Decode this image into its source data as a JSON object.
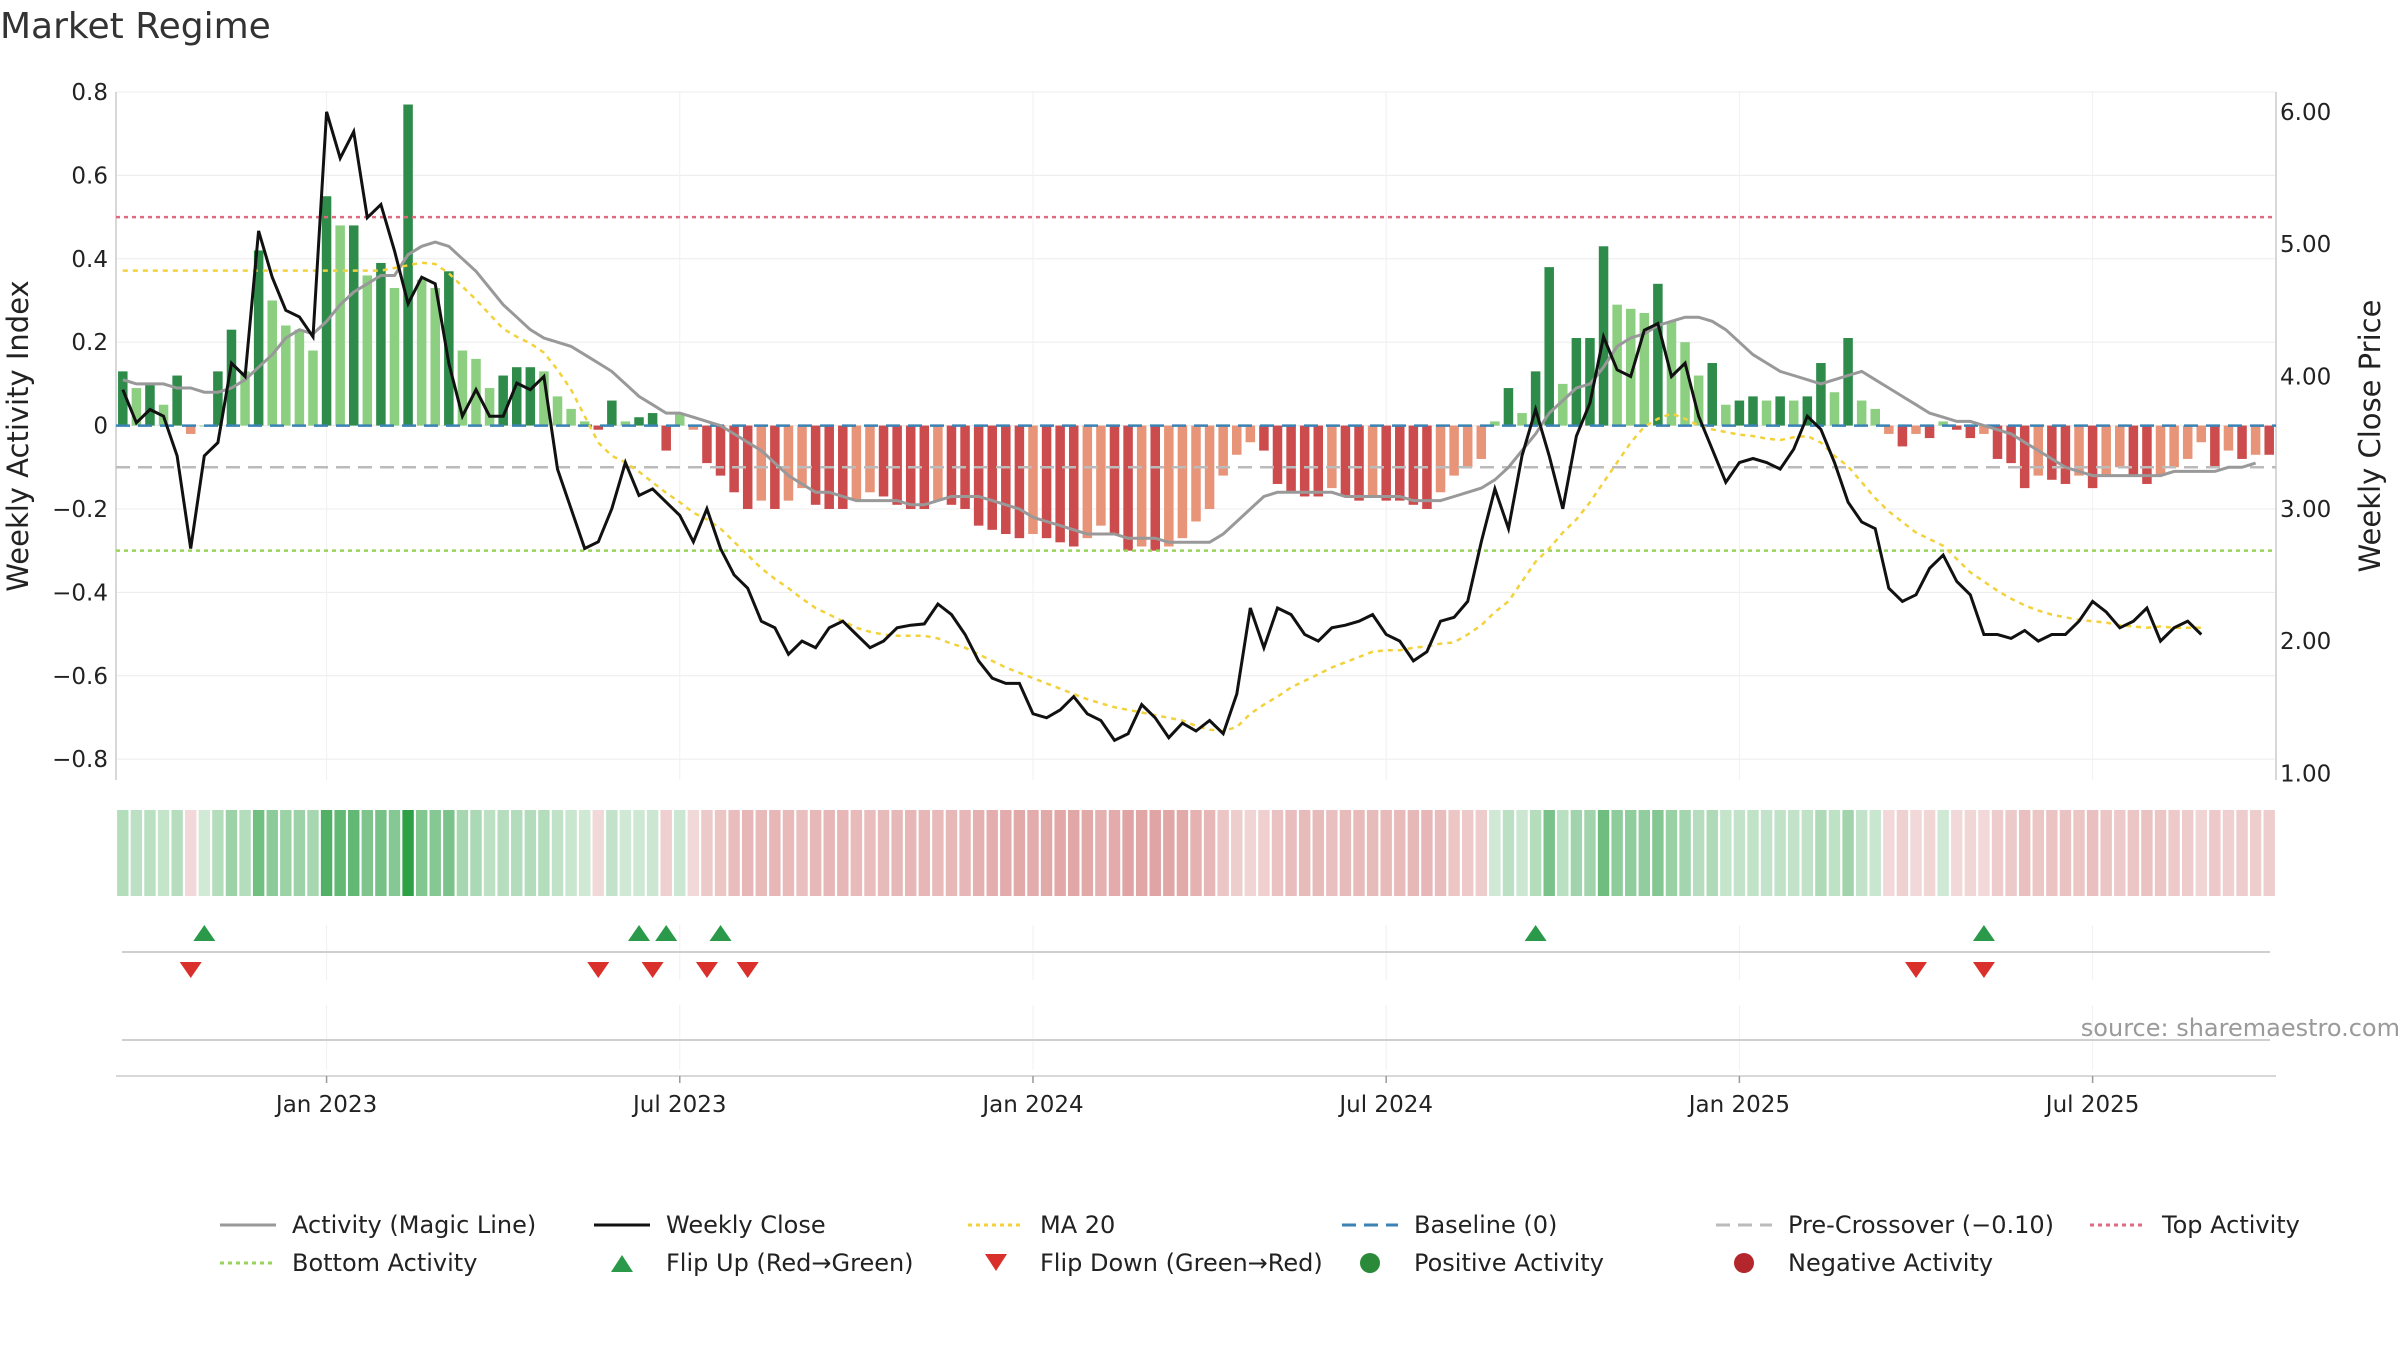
{
  "chart_data": {
    "type": "bar",
    "title": "Market Regime",
    "source": "source: sharemaestro.com",
    "ylabel_left": "Weekly Activity Index",
    "ylabel_right": "Weekly Close Price",
    "ylim_left": [
      -0.85,
      0.8
    ],
    "ylim_right": [
      0.95,
      6.15
    ],
    "yticks_left": [
      "0.8",
      "0.6",
      "0.4",
      "0.2",
      "0",
      "−0.2",
      "−0.4",
      "−0.6",
      "−0.8"
    ],
    "yticks_right": [
      "6.00",
      "5.00",
      "4.00",
      "3.00",
      "2.00",
      "1.00"
    ],
    "x_tick_labels": [
      "Jan 2023",
      "Jul 2023",
      "Jan 2024",
      "Jul 2024",
      "Jan 2025",
      "Jul 2025"
    ],
    "grid": true,
    "reference_lines": {
      "top_activity": 0.5,
      "pre_crossover": -0.1,
      "bottom_activity": -0.3,
      "baseline": 0
    },
    "series": [
      {
        "name": "Weekly Activity Index (bars)",
        "values": [
          0.13,
          0.09,
          0.1,
          0.05,
          0.12,
          -0.02,
          0.0,
          0.13,
          0.23,
          0.13,
          0.42,
          0.3,
          0.24,
          0.23,
          0.18,
          0.55,
          0.48,
          0.48,
          0.36,
          0.39,
          0.33,
          0.77,
          0.35,
          0.33,
          0.37,
          0.18,
          0.16,
          0.09,
          0.12,
          0.14,
          0.14,
          0.13,
          0.07,
          0.04,
          0.01,
          -0.01,
          0.06,
          0.01,
          0.02,
          0.03,
          -0.06,
          0.03,
          -0.01,
          -0.09,
          -0.12,
          -0.16,
          -0.2,
          -0.18,
          -0.2,
          -0.18,
          -0.15,
          -0.19,
          -0.2,
          -0.2,
          -0.18,
          -0.16,
          -0.17,
          -0.19,
          -0.2,
          -0.2,
          -0.18,
          -0.19,
          -0.2,
          -0.24,
          -0.25,
          -0.26,
          -0.27,
          -0.26,
          -0.27,
          -0.28,
          -0.29,
          -0.27,
          -0.24,
          -0.26,
          -0.3,
          -0.29,
          -0.3,
          -0.29,
          -0.27,
          -0.23,
          -0.2,
          -0.12,
          -0.07,
          -0.04,
          -0.06,
          -0.14,
          -0.16,
          -0.17,
          -0.17,
          -0.15,
          -0.17,
          -0.18,
          -0.17,
          -0.18,
          -0.18,
          -0.19,
          -0.2,
          -0.16,
          -0.12,
          -0.1,
          -0.08,
          0.01,
          0.09,
          0.03,
          0.13,
          0.38,
          0.1,
          0.21,
          0.21,
          0.43,
          0.29,
          0.28,
          0.27,
          0.34,
          0.25,
          0.2,
          0.12,
          0.15,
          0.05,
          0.06,
          0.07,
          0.06,
          0.07,
          0.06,
          0.07,
          0.15,
          0.08,
          0.21,
          0.06,
          0.04,
          -0.02,
          -0.05,
          -0.02,
          -0.03,
          0.01,
          -0.01,
          -0.03,
          -0.02,
          -0.08,
          -0.09,
          -0.15,
          -0.12,
          -0.13,
          -0.14,
          -0.12,
          -0.15,
          -0.12,
          -0.1,
          -0.12,
          -0.14,
          -0.12,
          -0.1,
          -0.08,
          -0.04,
          -0.1,
          -0.06,
          -0.08,
          -0.07,
          -0.07
        ]
      },
      {
        "name": "Activity (Magic Line)",
        "values": [
          0.11,
          0.1,
          0.1,
          0.1,
          0.09,
          0.09,
          0.08,
          0.08,
          0.09,
          0.11,
          0.14,
          0.17,
          0.21,
          0.23,
          0.22,
          0.25,
          0.29,
          0.32,
          0.34,
          0.36,
          0.36,
          0.41,
          0.43,
          0.44,
          0.43,
          0.4,
          0.37,
          0.33,
          0.29,
          0.26,
          0.23,
          0.21,
          0.2,
          0.19,
          0.17,
          0.15,
          0.13,
          0.1,
          0.07,
          0.05,
          0.03,
          0.03,
          0.02,
          0.01,
          0.0,
          -0.02,
          -0.04,
          -0.06,
          -0.09,
          -0.12,
          -0.14,
          -0.16,
          -0.16,
          -0.17,
          -0.18,
          -0.18,
          -0.18,
          -0.18,
          -0.19,
          -0.19,
          -0.18,
          -0.17,
          -0.17,
          -0.17,
          -0.18,
          -0.19,
          -0.2,
          -0.22,
          -0.23,
          -0.24,
          -0.25,
          -0.26,
          -0.26,
          -0.26,
          -0.27,
          -0.27,
          -0.27,
          -0.28,
          -0.28,
          -0.28,
          -0.28,
          -0.26,
          -0.23,
          -0.2,
          -0.17,
          -0.16,
          -0.16,
          -0.16,
          -0.16,
          -0.16,
          -0.17,
          -0.17,
          -0.17,
          -0.17,
          -0.17,
          -0.18,
          -0.18,
          -0.18,
          -0.17,
          -0.16,
          -0.15,
          -0.13,
          -0.1,
          -0.06,
          -0.02,
          0.03,
          0.06,
          0.09,
          0.1,
          0.14,
          0.19,
          0.21,
          0.22,
          0.24,
          0.25,
          0.26,
          0.26,
          0.25,
          0.23,
          0.2,
          0.17,
          0.15,
          0.13,
          0.12,
          0.11,
          0.1,
          0.11,
          0.12,
          0.13,
          0.11,
          0.09,
          0.07,
          0.05,
          0.03,
          0.02,
          0.01,
          0.01,
          0.0,
          -0.01,
          -0.02,
          -0.04,
          -0.06,
          -0.08,
          -0.1,
          -0.11,
          -0.12,
          -0.12,
          -0.12,
          -0.12,
          -0.12,
          -0.12,
          -0.11,
          -0.11,
          -0.11,
          -0.11,
          -0.1,
          -0.1,
          -0.09
        ]
      },
      {
        "name": "Weekly Close",
        "values": [
          3.9,
          3.65,
          3.75,
          3.7,
          3.4,
          2.7,
          3.4,
          3.5,
          4.1,
          4.0,
          5.1,
          4.75,
          4.5,
          4.45,
          4.3,
          6.0,
          5.65,
          5.85,
          5.2,
          5.3,
          4.95,
          4.55,
          4.75,
          4.7,
          4.1,
          3.7,
          3.9,
          3.7,
          3.7,
          3.95,
          3.9,
          4.0,
          3.3,
          3.0,
          2.7,
          2.75,
          3.0,
          3.35,
          3.1,
          3.15,
          3.05,
          2.95,
          2.75,
          3.0,
          2.7,
          2.5,
          2.4,
          2.15,
          2.1,
          1.9,
          2.0,
          1.95,
          2.1,
          2.15,
          2.05,
          1.95,
          2.0,
          2.1,
          2.12,
          2.13,
          2.28,
          2.2,
          2.05,
          1.85,
          1.72,
          1.68,
          1.68,
          1.45,
          1.42,
          1.48,
          1.58,
          1.45,
          1.4,
          1.25,
          1.3,
          1.52,
          1.42,
          1.27,
          1.38,
          1.32,
          1.4,
          1.3,
          1.6,
          2.25,
          1.95,
          2.25,
          2.2,
          2.05,
          2.0,
          2.1,
          2.12,
          2.15,
          2.2,
          2.05,
          2.0,
          1.85,
          1.92,
          2.15,
          2.18,
          2.3,
          2.75,
          3.15,
          2.85,
          3.4,
          3.75,
          3.4,
          3.0,
          3.55,
          3.8,
          4.3,
          4.05,
          4.0,
          4.35,
          4.4,
          4.0,
          4.1,
          3.7,
          3.45,
          3.2,
          3.35,
          3.38,
          3.35,
          3.3,
          3.45,
          3.7,
          3.6,
          3.35,
          3.05,
          2.9,
          2.85,
          2.4,
          2.3,
          2.35,
          2.55,
          2.65,
          2.45,
          2.35,
          2.05,
          2.05,
          2.02,
          2.08,
          2.0,
          2.05,
          2.05,
          2.15,
          2.3,
          2.22,
          2.1,
          2.15,
          2.25,
          2.0,
          2.1,
          2.15,
          2.05
        ]
      },
      {
        "name": "MA 20",
        "values": [
          4.8,
          4.8,
          4.8,
          4.8,
          4.8,
          4.8,
          4.8,
          4.8,
          4.8,
          4.8,
          4.8,
          4.8,
          4.8,
          4.8,
          4.8,
          4.8,
          4.8,
          4.8,
          4.8,
          4.8,
          4.82,
          4.84,
          4.86,
          4.85,
          4.78,
          4.68,
          4.58,
          4.47,
          4.36,
          4.3,
          4.25,
          4.18,
          4.05,
          3.9,
          3.7,
          3.5,
          3.4,
          3.35,
          3.28,
          3.2,
          3.12,
          3.05,
          2.97,
          2.92,
          2.85,
          2.75,
          2.65,
          2.55,
          2.47,
          2.4,
          2.32,
          2.25,
          2.2,
          2.15,
          2.1,
          2.07,
          2.05,
          2.04,
          2.04,
          2.04,
          2.02,
          1.98,
          1.95,
          1.9,
          1.85,
          1.8,
          1.76,
          1.72,
          1.68,
          1.64,
          1.6,
          1.56,
          1.53,
          1.5,
          1.48,
          1.46,
          1.44,
          1.42,
          1.4,
          1.36,
          1.33,
          1.32,
          1.35,
          1.45,
          1.52,
          1.58,
          1.65,
          1.7,
          1.75,
          1.8,
          1.84,
          1.88,
          1.92,
          1.93,
          1.93,
          1.95,
          1.96,
          1.98,
          1.99,
          2.05,
          2.12,
          2.22,
          2.3,
          2.45,
          2.6,
          2.7,
          2.82,
          2.92,
          3.05,
          3.2,
          3.35,
          3.5,
          3.62,
          3.68,
          3.72,
          3.68,
          3.63,
          3.6,
          3.58,
          3.56,
          3.55,
          3.53,
          3.52,
          3.54,
          3.55,
          3.5,
          3.4,
          3.32,
          3.2,
          3.08,
          2.98,
          2.9,
          2.82,
          2.77,
          2.72,
          2.62,
          2.52,
          2.45,
          2.38,
          2.32,
          2.27,
          2.23,
          2.2,
          2.18,
          2.16,
          2.15,
          2.14,
          2.12,
          2.11,
          2.1,
          2.11,
          2.1,
          2.1,
          2.1
        ]
      }
    ],
    "flip_up_weeks": [
      6,
      38,
      40,
      44,
      104,
      137
    ],
    "flip_down_weeks": [
      5,
      35,
      39,
      43,
      46,
      132,
      137
    ],
    "legend": [
      {
        "label": "Activity (Magic Line)",
        "symbol": "line",
        "color": "#999999",
        "dash": ""
      },
      {
        "label": "Weekly Close",
        "symbol": "line",
        "color": "#111111",
        "dash": ""
      },
      {
        "label": "MA 20",
        "symbol": "line",
        "color": "#f2d23c",
        "dash": "4,4"
      },
      {
        "label": "Baseline (0)",
        "symbol": "line",
        "color": "#3b82b5",
        "dash": "14,8"
      },
      {
        "label": "Pre-Crossover (−0.10)",
        "symbol": "line",
        "color": "#bbbbbb",
        "dash": "14,8"
      },
      {
        "label": "Top Activity",
        "symbol": "line",
        "color": "#e06a80",
        "dash": "4,4"
      },
      {
        "label": "Bottom Activity",
        "symbol": "line",
        "color": "#9ad35b",
        "dash": "4,4"
      },
      {
        "label": "Flip Up (Red→Green)",
        "symbol": "tri-up",
        "color": "#2a9a4a",
        "dash": ""
      },
      {
        "label": "Flip Down (Green→Red)",
        "symbol": "tri-down",
        "color": "#d9302c",
        "dash": ""
      },
      {
        "label": "Positive Activity",
        "symbol": "dot",
        "color": "#2a8a3a",
        "dash": ""
      },
      {
        "label": "Negative Activity",
        "symbol": "dot",
        "color": "#b3262c",
        "dash": ""
      }
    ],
    "legend_placement": "bottom",
    "colors": {
      "pos_strong": "#2e8b4a",
      "pos_light": "#8ccf80",
      "neg_strong": "#cc4b4d",
      "neg_light": "#e89478",
      "magic_line": "#999999",
      "close_line": "#111111",
      "ma_line": "#f2d23c",
      "baseline": "#3b82b5",
      "pre_crossover": "#bbbbbb",
      "top_activity": "#e06a80",
      "bottom_activity": "#9ad35b"
    }
  }
}
